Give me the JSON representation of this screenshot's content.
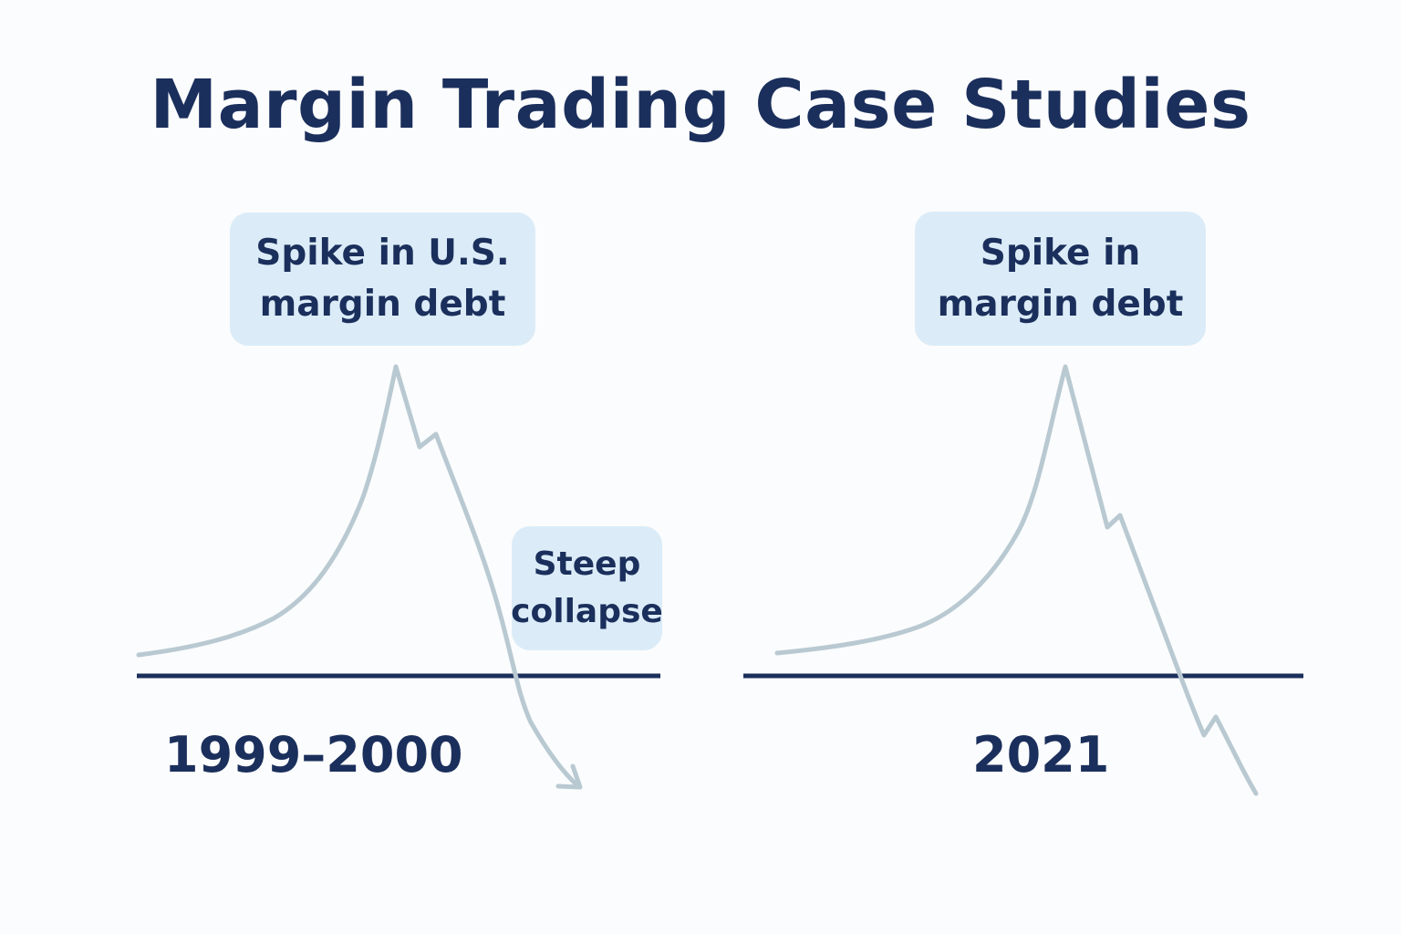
{
  "title": "Margin Trading Case Studies",
  "colors": {
    "heading": "#1b2f5c",
    "baseline": "#1b2f5c",
    "trend_line": "#b9c9d2",
    "callout_fill": "#dbecf8",
    "background": "#fbfcfd"
  },
  "panels": [
    {
      "period_label": "1999–2000",
      "peak_callout": "Spike in U.S.\nmargin debt",
      "collapse_callout": "Steep\ncollapse",
      "trend_end_marker": "arrow-head-icon"
    },
    {
      "period_label": "2021",
      "peak_callout": "Spike in\nmargin debt"
    }
  ]
}
